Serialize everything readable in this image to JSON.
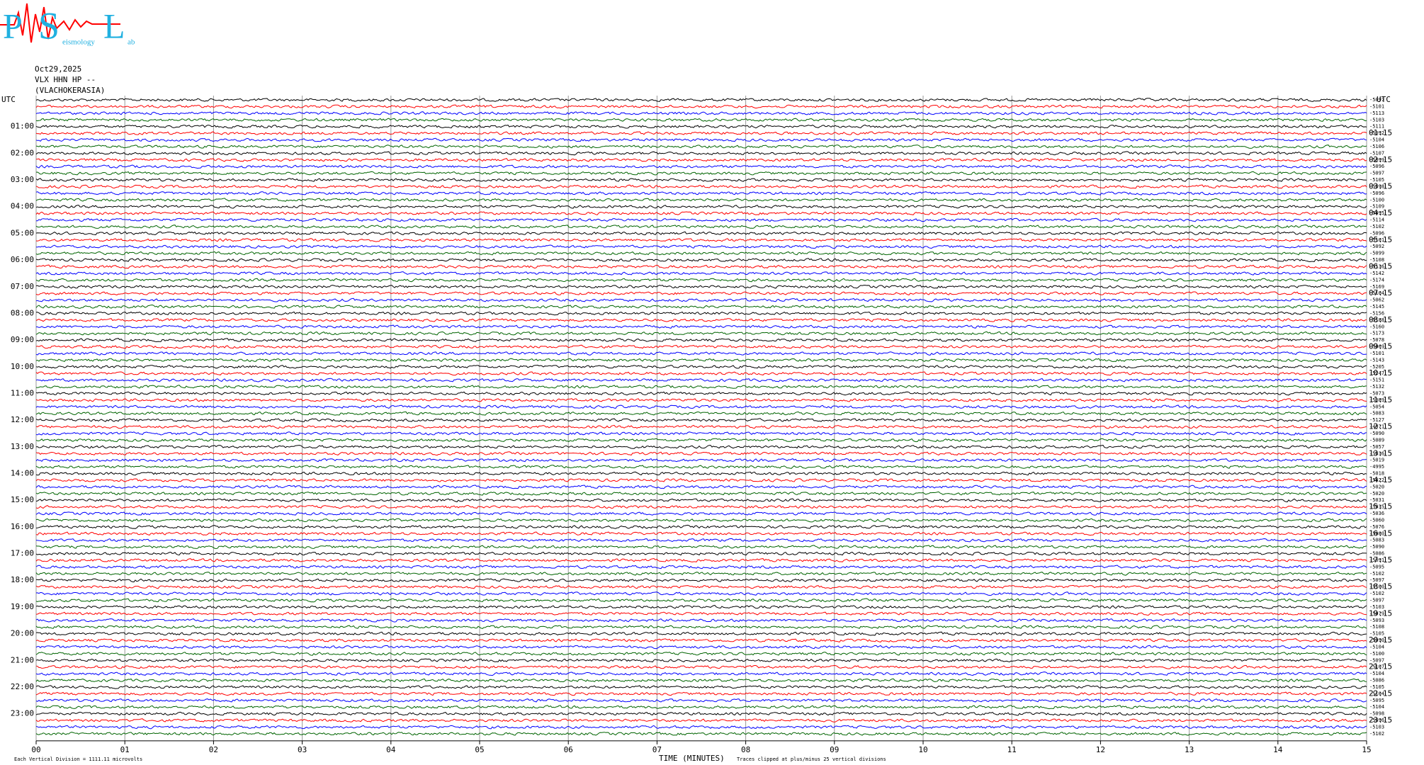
{
  "chart_data": {
    "type": "helicorder",
    "logo": {
      "letters": [
        "P",
        "S",
        "L"
      ],
      "small": [
        "eismology",
        "ab"
      ]
    },
    "header": [
      "Oct29,2025",
      "VLX HHN HP --",
      "(VLACHOKERASIA)"
    ],
    "xlabel": "TIME (MINUTES)",
    "footnotes": [
      "Each Vertical Division = 1111.11 microvolts",
      "Traces clipped at plus/minus 25 vertical divisions"
    ],
    "xlim": [
      0,
      15
    ],
    "xticks": [
      {
        "value": 0,
        "label": "00"
      },
      {
        "value": 1,
        "label": "01"
      },
      {
        "value": 2,
        "label": "02"
      },
      {
        "value": 3,
        "label": "03"
      },
      {
        "value": 4,
        "label": "04"
      },
      {
        "value": 5,
        "label": "05"
      },
      {
        "value": 6,
        "label": "06"
      },
      {
        "value": 7,
        "label": "07"
      },
      {
        "value": 8,
        "label": "08"
      },
      {
        "value": 9,
        "label": "09"
      },
      10,
      11,
      12,
      13,
      14,
      15
    ],
    "left_labels": [
      "UTC",
      "01:00",
      "02:00",
      "03:00",
      "04:00",
      "05:00",
      "06:00",
      "07:00",
      "08:00",
      "09:00",
      "10:00",
      "11:00",
      "12:00",
      "13:00",
      "14:00",
      "15:00",
      "16:00",
      "17:00",
      "18:00",
      "19:00",
      "20:00",
      "21:00",
      "22:00",
      "23:00"
    ],
    "right_labels": [
      "UTC",
      "01:15",
      "02:15",
      "03:15",
      "04:15",
      "05:15",
      "06:15",
      "07:15",
      "08:15",
      "09:15",
      "10:15",
      "11:15",
      "12:15",
      "13:15",
      "14:15",
      "15:15",
      "16:15",
      "17:15",
      "18:15",
      "19:15",
      "20:15",
      "21:15",
      "22:15",
      "23:15"
    ],
    "trace_colors": [
      "#000000",
      "#ff0000",
      "#0000ff",
      "#006400"
    ],
    "trace_offsets": [
      -5097,
      -5101,
      -5113,
      -5103,
      -5111,
      -5092,
      -5104,
      -5106,
      -5107,
      -5099,
      -5096,
      -5097,
      -5105,
      -5098,
      -5096,
      -5100,
      -5109,
      -5095,
      -5114,
      -5102,
      -5096,
      -5101,
      -5092,
      -5099,
      -5108,
      -5136,
      -5142,
      -5174,
      -5169,
      -5104,
      -5062,
      -5145,
      -5156,
      -5188,
      -5160,
      -5173,
      -5078,
      -5069,
      -5101,
      -5143,
      -5205,
      -5247,
      -5151,
      -5132,
      -5073,
      -5089,
      -5054,
      -5083,
      -5127,
      -4971,
      -5090,
      -5089,
      -5057,
      -5036,
      -5019,
      -4995,
      -5018,
      -5022,
      -5020,
      -5020,
      -5031,
      -5035,
      -5036,
      -5060,
      -5076,
      -5080,
      -5083,
      -5090,
      -5086,
      -5091,
      -5095,
      -5102,
      -5097,
      -5100,
      -5102,
      -5097,
      -5103,
      -5079,
      -5093,
      -5108,
      -5105,
      -5090,
      -5104,
      -5100,
      -5097,
      -5107,
      -5104,
      -5086,
      -5105,
      -5104,
      -5095,
      -5104,
      -5098,
      -5096,
      -5103,
      -5102
    ]
  }
}
